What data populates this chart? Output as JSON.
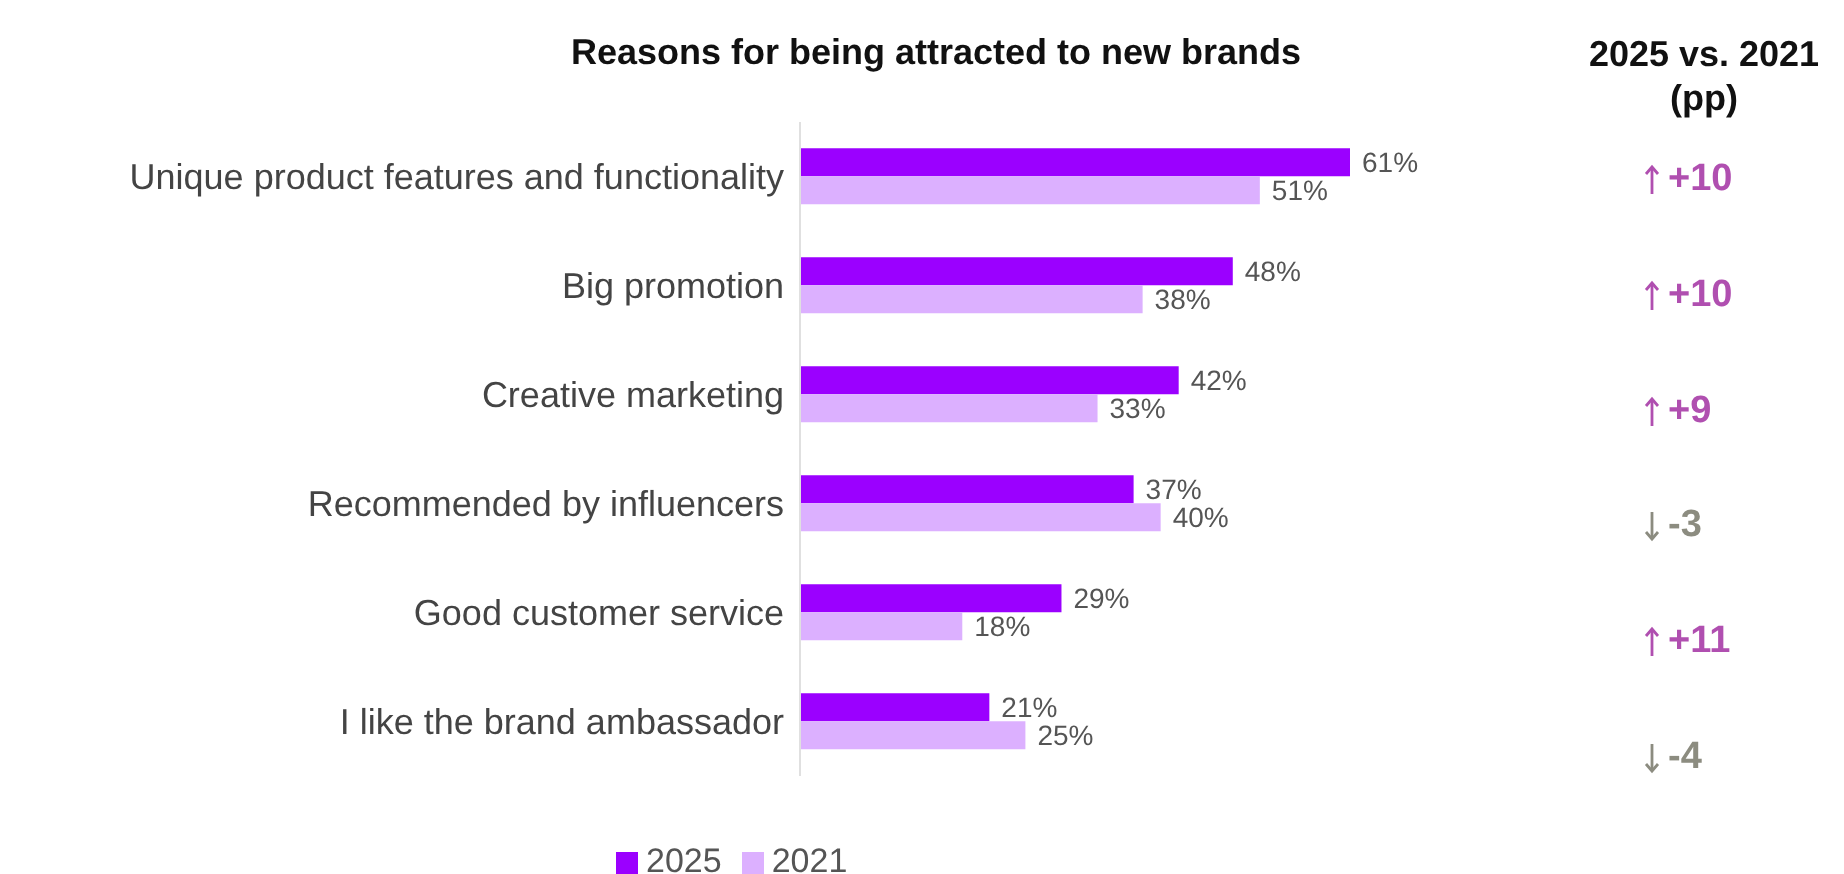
{
  "chart_data": {
    "type": "bar",
    "orientation": "horizontal",
    "title": "Reasons for being attracted to new brands",
    "categories": [
      "Unique product features and functionality",
      "Big promotion",
      "Creative marketing",
      "Recommended by influencers",
      "Good customer service",
      "I like the brand ambassador"
    ],
    "series": [
      {
        "name": "2025",
        "color": "#9b00ff",
        "values": [
          61,
          48,
          42,
          37,
          29,
          21
        ],
        "value_labels": [
          "61%",
          "48%",
          "42%",
          "37%",
          "29%",
          "21%"
        ]
      },
      {
        "name": "2021",
        "color": "#dcb0ff",
        "values": [
          51,
          38,
          33,
          40,
          18,
          25
        ],
        "value_labels": [
          "51%",
          "38%",
          "33%",
          "40%",
          "18%",
          "25%"
        ]
      }
    ],
    "tick_labels": "y",
    "grid": false,
    "legend": "bottom",
    "annotations": [
      "2025 vs. 2021 (pp)",
      "+10",
      "+10",
      "+9",
      "-3",
      "+11",
      "-4"
    ]
  }
}
